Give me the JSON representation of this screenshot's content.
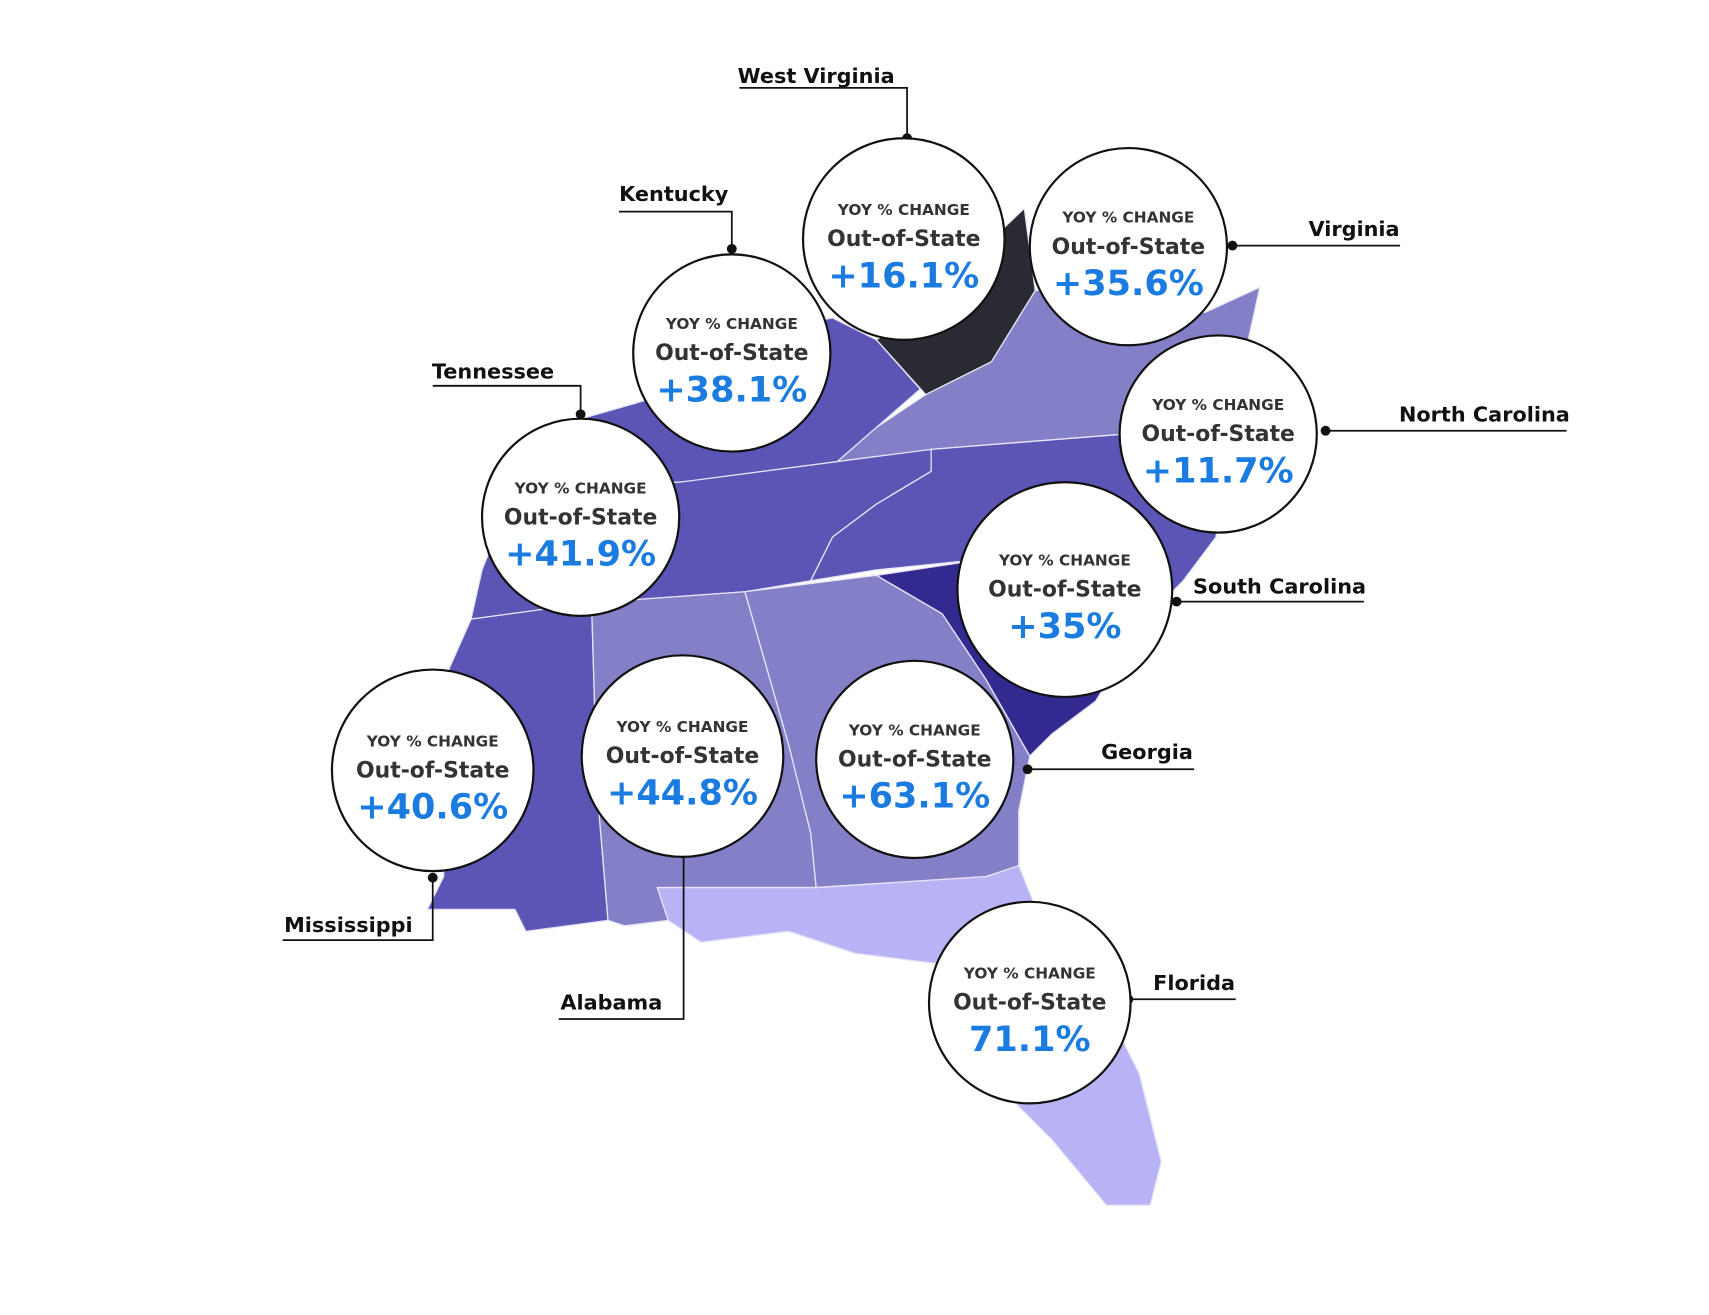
{
  "states": [
    {
      "name": "West Virginia",
      "heading": "YOY % CHANGE",
      "metric": "Out-of-State",
      "value": "+16.1%"
    },
    {
      "name": "Virginia",
      "heading": "YOY % CHANGE",
      "metric": "Out-of-State",
      "value": "+35.6%"
    },
    {
      "name": "Kentucky",
      "heading": "YOY % CHANGE",
      "metric": "Out-of-State",
      "value": "+38.1%"
    },
    {
      "name": "Tennessee",
      "heading": "YOY % CHANGE",
      "metric": "Out-of-State",
      "value": "+41.9%"
    },
    {
      "name": "North Carolina",
      "heading": "YOY % CHANGE",
      "metric": "Out-of-State",
      "value": "+11.7%"
    },
    {
      "name": "South Carolina",
      "heading": "YOY % CHANGE",
      "metric": "Out-of-State",
      "value": "+35%"
    },
    {
      "name": "Georgia",
      "heading": "YOY % CHANGE",
      "metric": "Out-of-State",
      "value": "+63.1%"
    },
    {
      "name": "Alabama",
      "heading": "YOY % CHANGE",
      "metric": "Out-of-State",
      "value": "+44.8%"
    },
    {
      "name": "Mississippi",
      "heading": "YOY % CHANGE",
      "metric": "Out-of-State",
      "value": "+40.6%"
    },
    {
      "name": "Florida",
      "heading": "YOY % CHANGE",
      "metric": "Out-of-State",
      "value": "71.1%"
    }
  ]
}
